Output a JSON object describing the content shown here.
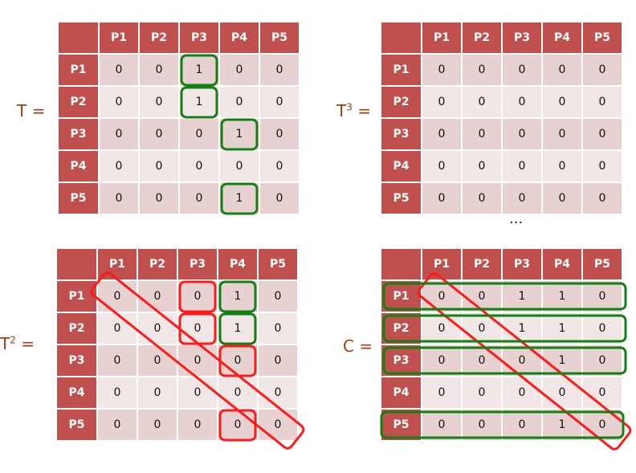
{
  "headers": [
    "P1",
    "P2",
    "P3",
    "P4",
    "P5"
  ],
  "matrices": [
    {
      "id": "T",
      "label": "T =",
      "power": "",
      "values": [
        [
          0,
          0,
          1,
          0,
          0
        ],
        [
          0,
          0,
          1,
          0,
          0
        ],
        [
          0,
          0,
          0,
          1,
          0
        ],
        [
          0,
          0,
          0,
          0,
          0
        ],
        [
          0,
          0,
          0,
          1,
          0
        ]
      ]
    },
    {
      "id": "T3",
      "label": "T",
      "power": "3",
      "suffix": " =",
      "values": [
        [
          0,
          0,
          0,
          0,
          0
        ],
        [
          0,
          0,
          0,
          0,
          0
        ],
        [
          0,
          0,
          0,
          0,
          0
        ],
        [
          0,
          0,
          0,
          0,
          0
        ],
        [
          0,
          0,
          0,
          0,
          0
        ]
      ]
    },
    {
      "id": "T2",
      "label": "T",
      "power": "2",
      "suffix": " =",
      "values": [
        [
          0,
          0,
          0,
          1,
          0
        ],
        [
          0,
          0,
          0,
          1,
          0
        ],
        [
          0,
          0,
          0,
          0,
          0
        ],
        [
          0,
          0,
          0,
          0,
          0
        ],
        [
          0,
          0,
          0,
          0,
          0
        ]
      ]
    },
    {
      "id": "C",
      "label": "C =",
      "power": "",
      "values": [
        [
          0,
          0,
          1,
          1,
          0
        ],
        [
          0,
          0,
          1,
          1,
          0
        ],
        [
          0,
          0,
          0,
          1,
          0
        ],
        [
          0,
          0,
          0,
          0,
          0
        ],
        [
          0,
          0,
          0,
          1,
          0
        ]
      ]
    }
  ],
  "ellipsis": "...",
  "colors": {
    "header": "#c0504d",
    "row_odd": "#e8d1d1",
    "row_even": "#f2e7e7",
    "highlight_green": "#138013",
    "highlight_red": "#ff1a1a",
    "label": "#9c3d12"
  }
}
